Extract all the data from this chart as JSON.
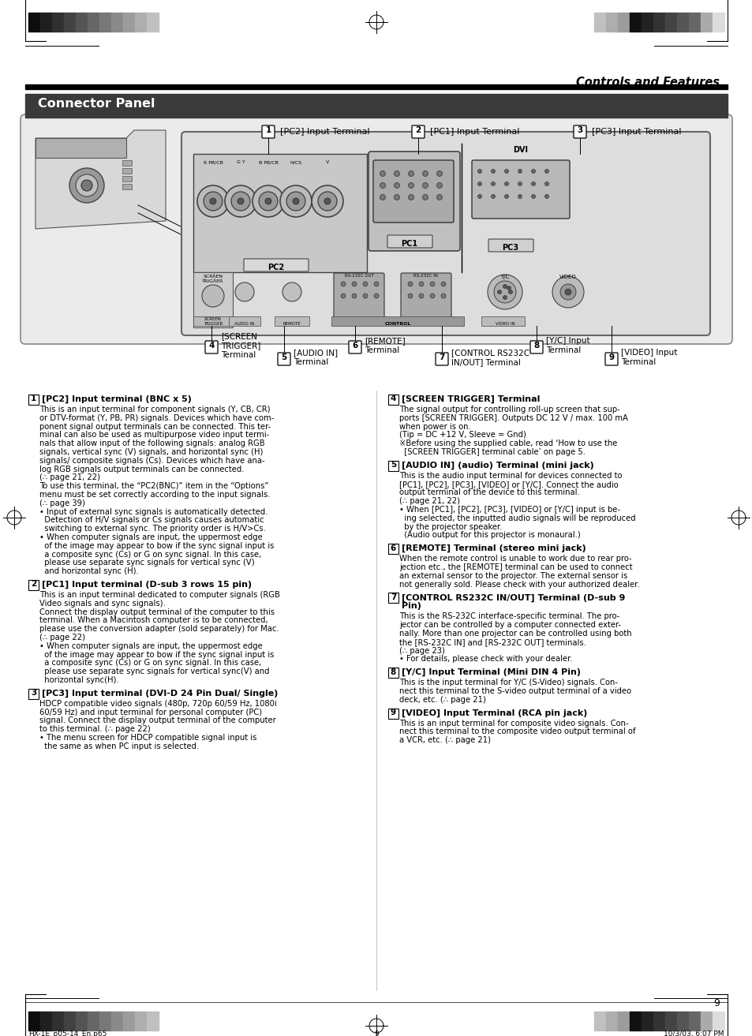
{
  "page_bg": "#ffffff",
  "header_right_text": "Controls and Features",
  "section_header_bg": "#3a3a3a",
  "section_header_text": "Connector Panel",
  "section_header_text_color": "#ffffff",
  "diagram_bg": "#e8e8e8",
  "page_number": "9",
  "footer_left": "HX-1E_p05-14_En.p65",
  "footer_center_page": "9",
  "footer_right": "10/3/03, 6:07 PM",
  "sections": [
    {
      "num": "1",
      "title": "[PC2] Input terminal (BNC x 5)",
      "col": 0,
      "body": "This is an input terminal for component signals (Y, CB, CR)\nor DTV-format (Y, PB, PR) signals. Devices which have com-\nponent signal output terminals can be connected. This ter-\nminal can also be used as multipurpose video input termi-\nnals that allow input of the following signals: analog RGB\nsignals, vertical sync (V) signals, and horizontal sync (H)\nsignals/ composite signals (Cs). Devices which have ana-\nlog RGB signals output terminals can be connected.\n(∴ page 21, 22)\nTo use this terminal, the “PC2(BNC)” item in the “Options”\nmenu must be set correctly according to the input signals.\n(∴ page 39)\n• Input of external sync signals is automatically detected.\n  Detection of H/V signals or Cs signals causes automatic\n  switching to external sync. The priority order is H/V>Cs.\n• When computer signals are input, the uppermost edge\n  of the image may appear to bow if the sync signal input is\n  a composite sync (Cs) or G on sync signal. In this case,\n  please use separate sync signals for vertical sync (V)\n  and horizontal sync (H)."
    },
    {
      "num": "2",
      "title": "[PC1] Input terminal (D-sub 3 rows 15 pin)",
      "col": 0,
      "body": "This is an input terminal dedicated to computer signals (RGB\nVideo signals and sync signals).\nConnect the display output terminal of the computer to this\nterminal. When a Macintosh computer is to be connected,\nplease use the conversion adapter (sold separately) for Mac.\n(∴ page 22)\n• When computer signals are input, the uppermost edge\n  of the image may appear to bow if the sync signal input is\n  a composite sync (Cs) or G on sync signal. In this case,\n  please use separate sync signals for vertical sync(V) and\n  horizontal sync(H)."
    },
    {
      "num": "3",
      "title": "[PC3] Input terminal (DVI-D 24 Pin Dual/ Single)",
      "col": 0,
      "body": "HDCP compatible video signals (480p, 720p 60/59 Hz, 1080i\n60/59 Hz) and input terminal for personal computer (PC)\nsignal. Connect the display output terminal of the computer\nto this terminal. (∴ page 22)\n• The menu screen for HDCP compatible signal input is\n  the same as when PC input is selected."
    },
    {
      "num": "4",
      "title": "[SCREEN TRIGGER] Terminal",
      "col": 1,
      "body": "The signal output for controlling roll-up screen that sup-\nports [SCREEN TRIGGER]. Outputs DC 12 V / max. 100 mA\nwhen power is on.\n(Tip = DC +12 V, Sleeve = Gnd)\n※Before using the supplied cable, read ‘How to use the\n  [SCREEN TRIGGER] terminal cable’ on page 5."
    },
    {
      "num": "5",
      "title": "[AUDIO IN] (audio) Terminal (mini jack)",
      "col": 1,
      "body": "This is the audio input terminal for devices connected to\n[PC1], [PC2], [PC3], [VIDEO] or [Y/C]. Connect the audio\noutput terminal of the device to this terminal.\n(∴ page 21, 22)\n• When [PC1], [PC2], [PC3], [VIDEO] or [Y/C] input is be-\n  ing selected, the inputted audio signals will be reproduced\n  by the projector speaker.\n  (Audio output for this projector is monaural.)"
    },
    {
      "num": "6",
      "title": "[REMOTE] Terminal (stereo mini jack)",
      "col": 1,
      "body": "When the remote control is unable to work due to rear pro-\njection etc., the [REMOTE] terminal can be used to connect\nan external sensor to the projector. The external sensor is\nnot generally sold. Please check with your authorized dealer."
    },
    {
      "num": "7",
      "title": "[CONTROL RS232C IN/OUT] Terminal (D-sub 9\nPin)",
      "col": 1,
      "body": "This is the RS-232C interface-specific terminal. The pro-\njector can be controlled by a computer connected exter-\nnally. More than one projector can be controlled using both\nthe [RS-232C IN] and [RS-232C OUT] terminals.\n(∴ page 23)\n• For details, please check with your dealer."
    },
    {
      "num": "8",
      "title": "[Y/C] Input Terminal (Mini DIN 4 Pin)",
      "col": 1,
      "body": "This is the input terminal for Y/C (S-Video) signals. Con-\nnect this terminal to the S-video output terminal of a video\ndeck, etc. (∴ page 21)"
    },
    {
      "num": "9",
      "title": "[VIDEO] Input Terminal (RCA pin jack)",
      "col": 1,
      "body": "This is an input terminal for composite video signals. Con-\nnect this terminal to the composite video output terminal of\na VCR, etc. (∴ page 21)"
    }
  ]
}
